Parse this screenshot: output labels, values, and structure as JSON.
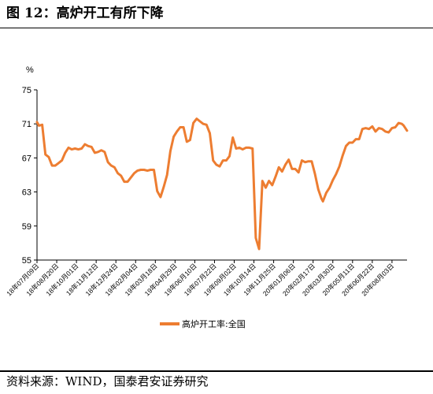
{
  "figure": {
    "title": "图 12：高炉开工有所下降",
    "source": "资料来源：WIND，国泰君安证券研究"
  },
  "chart_data": {
    "type": "line",
    "title": "",
    "xlabel": "",
    "ylabel": "%",
    "ylim": [
      55,
      75
    ],
    "yticks": [
      55,
      59,
      63,
      67,
      71,
      75
    ],
    "xlim": [
      "2018-07-09",
      "2020-09-04"
    ],
    "xticks": [
      "18年07月09日",
      "18年08月20日",
      "18年10月01日",
      "18年11月12日",
      "18年12月24日",
      "19年02月04日",
      "19年03月18日",
      "19年04月29日",
      "19年06月10日",
      "19年07月22日",
      "19年09月02日",
      "19年10月14日",
      "19年11月25日",
      "20年01月06日",
      "20年02月17日",
      "20年03月30日",
      "20年05月11日",
      "20年06月22日",
      "20年08月03日"
    ],
    "grid": false,
    "legend_position": "bottom-center",
    "colors": {
      "series": "#ED7D31"
    },
    "series": [
      {
        "name": "高炉开工率:全国",
        "points": [
          [
            "2018-07-09",
            71.2
          ],
          [
            "2018-07-13",
            70.8
          ],
          [
            "2018-07-20",
            70.9
          ],
          [
            "2018-07-27",
            67.4
          ],
          [
            "2018-08-03",
            67.1
          ],
          [
            "2018-08-10",
            66.1
          ],
          [
            "2018-08-17",
            66.1
          ],
          [
            "2018-08-24",
            66.4
          ],
          [
            "2018-08-31",
            66.7
          ],
          [
            "2018-09-07",
            67.6
          ],
          [
            "2018-09-14",
            68.2
          ],
          [
            "2018-09-21",
            68.0
          ],
          [
            "2018-09-28",
            68.1
          ],
          [
            "2018-10-05",
            68.0
          ],
          [
            "2018-10-12",
            68.1
          ],
          [
            "2018-10-19",
            68.6
          ],
          [
            "2018-10-26",
            68.4
          ],
          [
            "2018-11-02",
            68.3
          ],
          [
            "2018-11-09",
            67.6
          ],
          [
            "2018-11-16",
            67.7
          ],
          [
            "2018-11-23",
            67.9
          ],
          [
            "2018-11-30",
            67.7
          ],
          [
            "2018-12-07",
            66.5
          ],
          [
            "2018-12-14",
            66.1
          ],
          [
            "2018-12-21",
            65.9
          ],
          [
            "2018-12-28",
            65.2
          ],
          [
            "2019-01-04",
            64.9
          ],
          [
            "2019-01-11",
            64.2
          ],
          [
            "2019-01-18",
            64.2
          ],
          [
            "2019-01-25",
            64.7
          ],
          [
            "2019-02-01",
            65.2
          ],
          [
            "2019-02-08",
            65.5
          ],
          [
            "2019-02-15",
            65.6
          ],
          [
            "2019-02-22",
            65.6
          ],
          [
            "2019-03-01",
            65.5
          ],
          [
            "2019-03-08",
            65.6
          ],
          [
            "2019-03-15",
            65.6
          ],
          [
            "2019-03-22",
            63.1
          ],
          [
            "2019-03-29",
            62.4
          ],
          [
            "2019-04-05",
            63.6
          ],
          [
            "2019-04-12",
            65.0
          ],
          [
            "2019-04-19",
            67.8
          ],
          [
            "2019-04-26",
            69.5
          ],
          [
            "2019-05-03",
            70.1
          ],
          [
            "2019-05-10",
            70.6
          ],
          [
            "2019-05-17",
            70.6
          ],
          [
            "2019-05-24",
            68.9
          ],
          [
            "2019-05-31",
            69.1
          ],
          [
            "2019-06-07",
            71.1
          ],
          [
            "2019-06-14",
            71.6
          ],
          [
            "2019-06-21",
            71.3
          ],
          [
            "2019-06-28",
            71.0
          ],
          [
            "2019-07-05",
            70.9
          ],
          [
            "2019-07-12",
            69.9
          ],
          [
            "2019-07-19",
            66.7
          ],
          [
            "2019-07-26",
            66.2
          ],
          [
            "2019-08-02",
            66.0
          ],
          [
            "2019-08-09",
            66.7
          ],
          [
            "2019-08-16",
            66.7
          ],
          [
            "2019-08-23",
            67.2
          ],
          [
            "2019-08-30",
            69.4
          ],
          [
            "2019-09-06",
            68.1
          ],
          [
            "2019-09-13",
            68.2
          ],
          [
            "2019-09-20",
            68.0
          ],
          [
            "2019-09-27",
            68.2
          ],
          [
            "2019-10-04",
            68.2
          ],
          [
            "2019-10-11",
            68.1
          ],
          [
            "2019-10-18",
            57.6
          ],
          [
            "2019-10-25",
            56.3
          ],
          [
            "2019-11-01",
            64.3
          ],
          [
            "2019-11-08",
            63.5
          ],
          [
            "2019-11-15",
            64.3
          ],
          [
            "2019-11-22",
            63.8
          ],
          [
            "2019-11-29",
            64.8
          ],
          [
            "2019-12-06",
            65.9
          ],
          [
            "2019-12-13",
            65.4
          ],
          [
            "2019-12-20",
            66.2
          ],
          [
            "2019-12-27",
            66.8
          ],
          [
            "2020-01-03",
            65.7
          ],
          [
            "2020-01-10",
            65.7
          ],
          [
            "2020-01-17",
            65.3
          ],
          [
            "2020-01-24",
            66.7
          ],
          [
            "2020-01-31",
            66.5
          ],
          [
            "2020-02-07",
            66.6
          ],
          [
            "2020-02-14",
            66.6
          ],
          [
            "2020-02-21",
            65.1
          ],
          [
            "2020-02-28",
            63.3
          ],
          [
            "2020-03-06",
            62.2
          ],
          [
            "2020-03-09",
            61.9
          ],
          [
            "2020-03-16",
            62.9
          ],
          [
            "2020-03-23",
            63.5
          ],
          [
            "2020-03-30",
            64.4
          ],
          [
            "2020-04-06",
            65.1
          ],
          [
            "2020-04-13",
            66.0
          ],
          [
            "2020-04-20",
            67.3
          ],
          [
            "2020-04-27",
            68.4
          ],
          [
            "2020-05-04",
            68.8
          ],
          [
            "2020-05-11",
            68.8
          ],
          [
            "2020-05-18",
            69.2
          ],
          [
            "2020-05-25",
            69.2
          ],
          [
            "2020-06-01",
            70.4
          ],
          [
            "2020-06-08",
            70.5
          ],
          [
            "2020-06-15",
            70.4
          ],
          [
            "2020-06-22",
            70.7
          ],
          [
            "2020-06-29",
            70.1
          ],
          [
            "2020-07-06",
            70.5
          ],
          [
            "2020-07-13",
            70.4
          ],
          [
            "2020-07-20",
            70.1
          ],
          [
            "2020-07-27",
            70.0
          ],
          [
            "2020-08-03",
            70.5
          ],
          [
            "2020-08-10",
            70.6
          ],
          [
            "2020-08-17",
            71.1
          ],
          [
            "2020-08-24",
            71.0
          ],
          [
            "2020-08-28",
            70.8
          ],
          [
            "2020-09-04",
            70.2
          ]
        ]
      }
    ]
  }
}
